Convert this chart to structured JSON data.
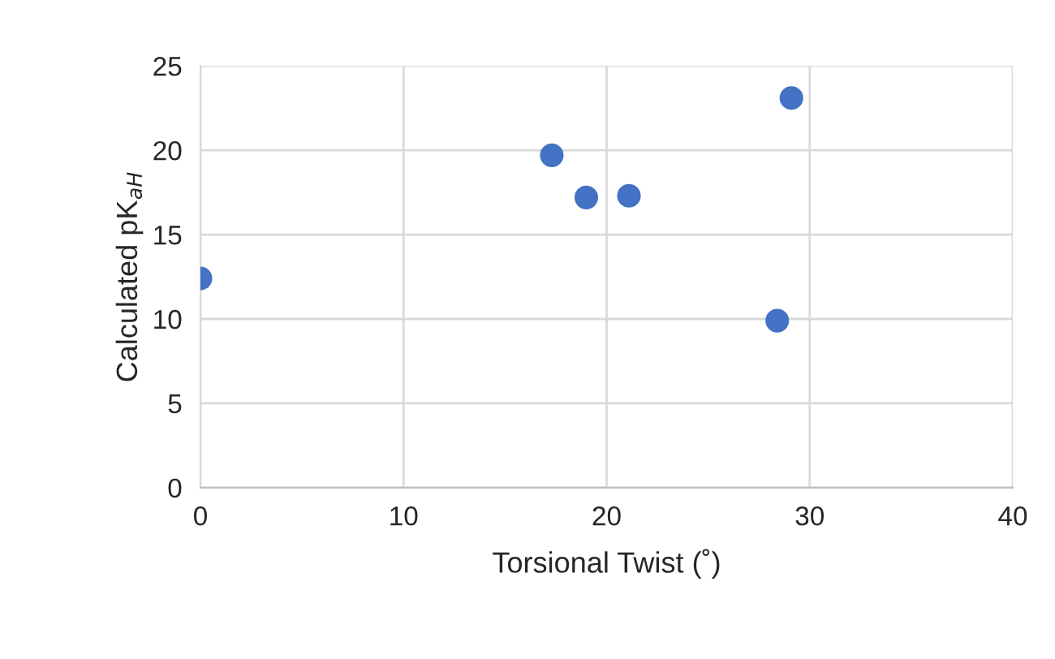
{
  "chart_data": {
    "type": "scatter",
    "xlabel": "Torsional Twist (˚)",
    "ylabel": "Calculated pK$_{aH}$",
    "x": [
      0,
      17.3,
      19,
      21.1,
      28.4,
      29.1
    ],
    "series": [
      {
        "color": "#4472c4",
        "values": [
          12.4,
          19.7,
          17.2,
          17.3,
          9.9,
          23.1
        ]
      }
    ],
    "xlim": [
      0,
      40
    ],
    "xticks": [
      0,
      10,
      20,
      30,
      40
    ],
    "ylim": [
      0,
      25
    ],
    "yticks": [
      0,
      5,
      10,
      15,
      20,
      25
    ],
    "grid": true,
    "marker": "circle",
    "legend": false
  }
}
